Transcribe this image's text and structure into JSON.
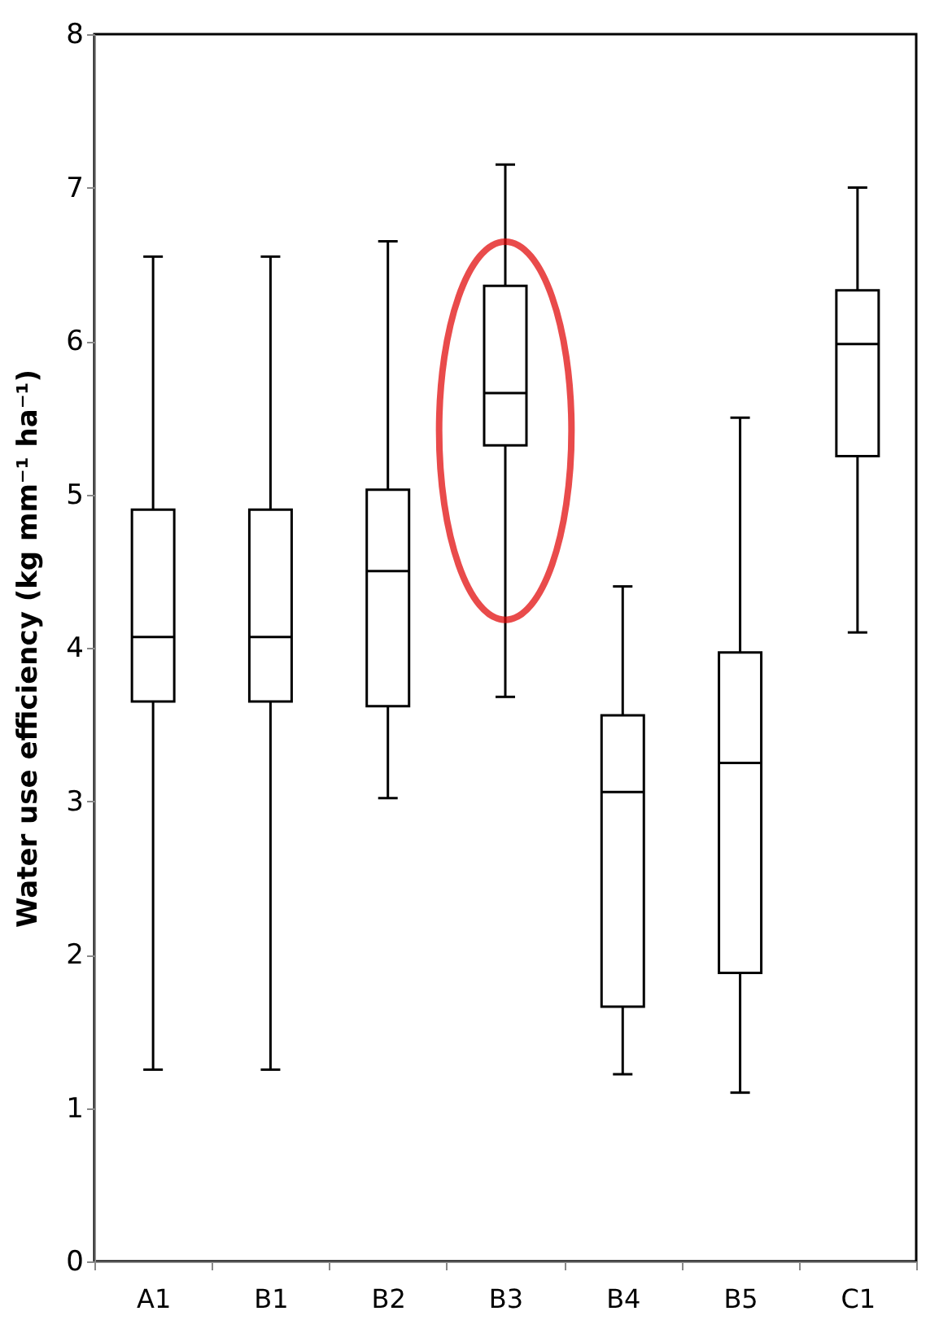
{
  "chart_data": {
    "type": "box",
    "ylabel": "Water use efficiency (kg mm⁻¹ ha⁻¹)",
    "categories": [
      "A1",
      "B1",
      "B2",
      "B3",
      "B4",
      "B5",
      "C1"
    ],
    "boxes": [
      {
        "low": 1.25,
        "q1": 3.65,
        "median": 4.07,
        "q3": 4.9,
        "high": 6.55
      },
      {
        "low": 1.25,
        "q1": 3.65,
        "median": 4.07,
        "q3": 4.9,
        "high": 6.55
      },
      {
        "low": 3.02,
        "q1": 3.62,
        "median": 4.5,
        "q3": 5.03,
        "high": 6.65
      },
      {
        "low": 3.68,
        "q1": 5.32,
        "median": 5.66,
        "q3": 6.36,
        "high": 7.15
      },
      {
        "low": 1.22,
        "q1": 1.66,
        "median": 3.06,
        "q3": 3.56,
        "high": 4.4
      },
      {
        "low": 1.1,
        "q1": 1.88,
        "median": 3.25,
        "q3": 3.97,
        "high": 5.5
      },
      {
        "low": 4.1,
        "q1": 5.25,
        "median": 5.98,
        "q3": 6.33,
        "high": 7.0
      }
    ],
    "ylim": [
      0,
      8
    ],
    "yticks": [
      0,
      1,
      2,
      3,
      4,
      5,
      6,
      7,
      8
    ],
    "grid": false
  }
}
